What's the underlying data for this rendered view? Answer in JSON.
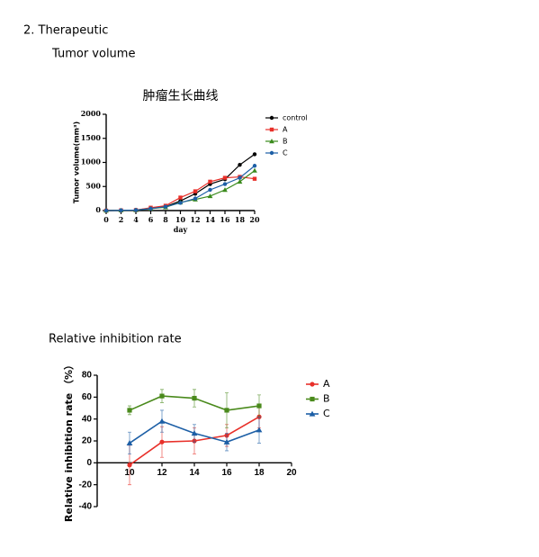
{
  "heading": "2.  Therapeutic",
  "subheading": "Tumor volume",
  "section2": "Relative inhibition rate",
  "chart_data": [
    {
      "type": "line",
      "title": "肿瘤生长曲线",
      "x_label": "day",
      "y_label": "Tumor volume(mm³)",
      "x": [
        0,
        2,
        4,
        6,
        8,
        10,
        12,
        14,
        16,
        18,
        20
      ],
      "xlim": [
        0,
        20
      ],
      "xticks": [
        0,
        2,
        4,
        6,
        8,
        10,
        12,
        14,
        16,
        18,
        20
      ],
      "ylim": [
        0,
        2000
      ],
      "yticks": [
        0,
        500,
        1000,
        1500,
        2000
      ],
      "series": [
        {
          "name": "control",
          "color": "#000000",
          "marker": "circle",
          "values": [
            0,
            5,
            10,
            50,
            80,
            200,
            350,
            550,
            650,
            950,
            1170
          ]
        },
        {
          "name": "A",
          "color": "#e8302a",
          "marker": "square",
          "values": [
            0,
            5,
            10,
            60,
            100,
            270,
            400,
            600,
            680,
            700,
            660
          ]
        },
        {
          "name": "B",
          "color": "#3a8a1c",
          "marker": "triangle",
          "values": [
            0,
            5,
            10,
            40,
            70,
            170,
            230,
            300,
            430,
            600,
            830
          ]
        },
        {
          "name": "C",
          "color": "#1d5fa6",
          "marker": "circle",
          "values": [
            0,
            5,
            10,
            40,
            80,
            160,
            250,
            430,
            550,
            680,
            930
          ]
        }
      ]
    },
    {
      "type": "line",
      "y_label": "Relative inhibition rate （%）",
      "x": [
        10,
        12,
        14,
        16,
        18
      ],
      "xlim": [
        8,
        20
      ],
      "xticks": [
        10,
        12,
        14,
        16,
        18,
        20
      ],
      "ylim": [
        -40,
        80
      ],
      "yticks": [
        -40,
        -20,
        0,
        20,
        40,
        60,
        80
      ],
      "series": [
        {
          "name": "A",
          "color": "#e8302a",
          "marker": "circle",
          "values": [
            -2,
            19,
            20,
            25,
            42
          ],
          "errors": [
            18,
            14,
            12,
            10,
            10
          ]
        },
        {
          "name": "B",
          "color": "#4a8a1c",
          "marker": "square",
          "values": [
            48,
            61,
            59,
            48,
            52
          ],
          "errors": [
            4,
            6,
            8,
            16,
            10
          ]
        },
        {
          "name": "C",
          "color": "#1d5fa6",
          "marker": "triangle",
          "values": [
            18,
            38,
            27,
            19,
            30
          ],
          "errors": [
            10,
            10,
            8,
            8,
            12
          ]
        }
      ]
    }
  ]
}
